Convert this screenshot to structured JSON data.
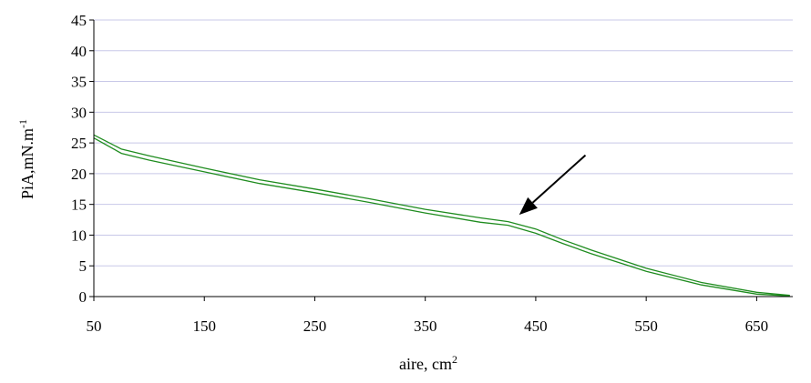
{
  "chart_data": {
    "type": "line",
    "title": "",
    "xlabel": "aire, cm",
    "xlabel_superscript": "2",
    "ylabel": "PiA,mN.m",
    "ylabel_superscript": "-1",
    "xlim": [
      50,
      700
    ],
    "ylim": [
      0,
      45
    ],
    "x_ticks": [
      50,
      150,
      250,
      350,
      450,
      550,
      650
    ],
    "y_ticks": [
      0,
      5,
      10,
      15,
      20,
      25,
      30,
      35,
      40,
      45
    ],
    "grid": "horizontal",
    "colors": {
      "line": "#1f8c1f",
      "grid": "#c8c8e8",
      "axis": "#000000",
      "arrow": "#000000"
    },
    "annotation": {
      "type": "arrow",
      "from": [
        495,
        23
      ],
      "to": [
        435,
        13.3
      ]
    },
    "series": [
      {
        "x": [
          50,
          75,
          100,
          150,
          200,
          250,
          300,
          350,
          400,
          425,
          450,
          475,
          500,
          550,
          600,
          650,
          680
        ],
        "values": [
          26.3,
          24.0,
          22.9,
          20.9,
          19.0,
          17.5,
          15.9,
          14.2,
          12.8,
          12.2,
          11.0,
          9.2,
          7.6,
          4.6,
          2.3,
          0.7,
          0.2
        ]
      },
      {
        "x": [
          50,
          75,
          100,
          150,
          200,
          250,
          300,
          350,
          400,
          425,
          450,
          475,
          500,
          550,
          600,
          650,
          680
        ],
        "values": [
          25.8,
          23.3,
          22.2,
          20.3,
          18.4,
          16.9,
          15.3,
          13.6,
          12.1,
          11.6,
          10.3,
          8.6,
          7.0,
          4.1,
          1.9,
          0.4,
          0.1
        ]
      }
    ]
  }
}
